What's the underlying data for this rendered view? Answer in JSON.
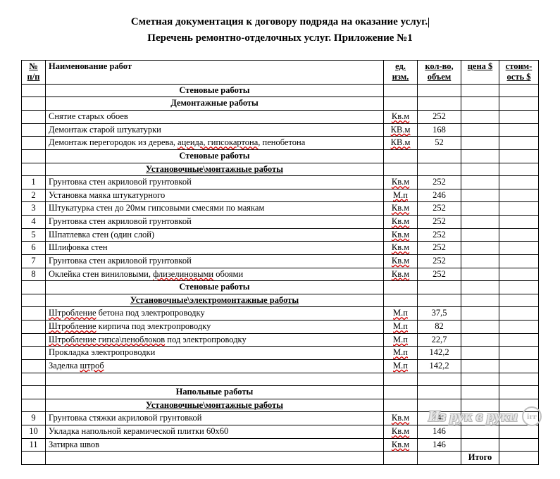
{
  "title": {
    "line1": "Сметная документация к договору подряда на оказание услуг.",
    "line2": "Перечень ремонтно-отделочных услуг. Приложение №1"
  },
  "columns": {
    "num": "№ п/п",
    "name": "Наименование работ",
    "unit": "ед. изм.",
    "qty": "кол-во, объем",
    "price": "цена $",
    "cost": "стоим-ость $"
  },
  "sections": {
    "wall": "Стеновые работы",
    "dem": "Демонтажные работы",
    "inst": "Установочные\\монтажные работы",
    "electro": "Установочные\\электромонтажные работы",
    "floor": "Напольные работы"
  },
  "rows": {
    "dem1": {
      "num": "",
      "name": "Снятие старых обоев",
      "unit": "Кв.м",
      "qty": "252"
    },
    "dem2": {
      "num": "",
      "name": "Демонтаж старой штукатурки",
      "unit": "КВ.м",
      "qty": "168"
    },
    "dem3": {
      "num": "",
      "name_pre": "Демонтаж перегородок из дерева, ",
      "name_mid": "ацеида, гипсокартона",
      "name_post": ", пенобетона",
      "unit": "КВ.м",
      "qty": "52"
    },
    "i1": {
      "num": "1",
      "name": "Грунтовка стен акриловой грунтовкой",
      "unit": "Кв.м",
      "qty": "252"
    },
    "i2": {
      "num": "2",
      "name": "Установка маяка штукатурного",
      "unit": "М.п",
      "qty": "246"
    },
    "i3": {
      "num": "3",
      "name": "Штукатурка стен до 20мм гипсовыми смесями по маякам",
      "unit": "Кв.м",
      "qty": "252"
    },
    "i4": {
      "num": "4",
      "name": "Грунтовка стен акриловой грунтовкой",
      "unit": "Кв.м",
      "qty": "252"
    },
    "i5": {
      "num": "5",
      "name": "Шпатлевка стен (один слой)",
      "unit": "Кв.м",
      "qty": "252"
    },
    "i6": {
      "num": "6",
      "name": "Шлифовка стен",
      "unit": "Кв.м",
      "qty": "252"
    },
    "i7": {
      "num": "7",
      "name": "Грунтовка стен акриловой грунтовкой",
      "unit": "Кв.м",
      "qty": "252"
    },
    "i8": {
      "num": "8",
      "name_pre": "Оклейка стен виниловыми, ",
      "name_mid": "флизелиновыми",
      "name_post": " обоями",
      "unit": "Кв.м",
      "qty": "252"
    },
    "e1": {
      "num": "",
      "name_pre": "",
      "name_mid": "Штробление",
      "name_post": " бетона под электропроводку",
      "unit": "М.п",
      "qty": "37,5"
    },
    "e2": {
      "num": "",
      "name_pre": "",
      "name_mid": "Штробление",
      "name_post": " кирпича под электропроводку",
      "unit": "М.п",
      "qty": "82"
    },
    "e3": {
      "num": "",
      "name_pre": "",
      "name_mid": "Штробление гипса\\пеноблоков",
      "name_post": " под электропроводку",
      "unit": "М.п",
      "qty": "22,7"
    },
    "e4": {
      "num": "",
      "name": "Прокладка электропроводки",
      "unit": "М.п",
      "qty": "142,2"
    },
    "e5": {
      "num": "",
      "name_pre": "Заделка ",
      "name_mid": "штроб",
      "name_post": "",
      "unit": "М.п",
      "qty": "142,2"
    },
    "f1": {
      "num": "9",
      "name": "Грунтовка стяжки акриловой грунтовкой",
      "unit": "Кв.м",
      "qty": "146"
    },
    "f2": {
      "num": "10",
      "name": "Укладка напольной керамической плитки 60х60",
      "unit": "Кв.м",
      "qty": "146"
    },
    "f3": {
      "num": "11",
      "name": "Затирка швов",
      "unit": "Кв.м",
      "qty": "146"
    }
  },
  "total_label": "Итого",
  "watermark": "Из рук в руки"
}
